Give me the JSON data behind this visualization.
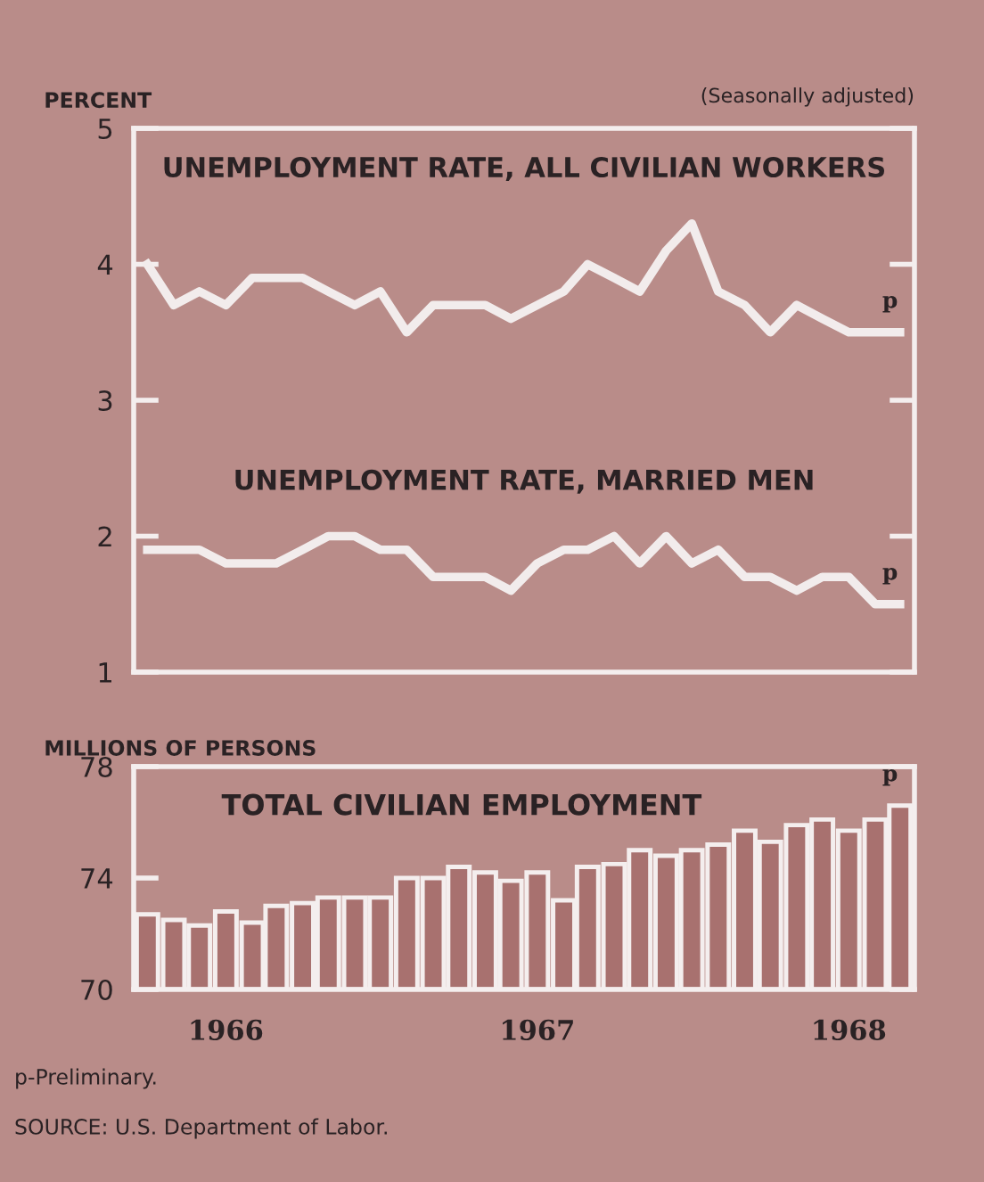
{
  "chart_data": [
    {
      "type": "line",
      "ylabel": "PERCENT",
      "subtitle": "(Seasonally adjusted)",
      "x": [
        "1965-10",
        "1965-11",
        "1965-12",
        "1966-01",
        "1966-02",
        "1966-03",
        "1966-04",
        "1966-05",
        "1966-06",
        "1966-07",
        "1966-08",
        "1966-09",
        "1966-10",
        "1966-11",
        "1966-12",
        "1967-01",
        "1967-02",
        "1967-03",
        "1967-04",
        "1967-05",
        "1967-06",
        "1967-07",
        "1967-08",
        "1967-09",
        "1967-10",
        "1967-11",
        "1967-12",
        "1968-01",
        "1968-02",
        "1968-03"
      ],
      "series": [
        {
          "name": "UNEMPLOYMENT RATE, ALL CIVILIAN WORKERS",
          "color": "#f2ecec",
          "values": [
            4.0,
            3.7,
            3.8,
            3.7,
            3.9,
            3.9,
            3.9,
            3.8,
            3.7,
            3.8,
            3.5,
            3.7,
            3.7,
            3.7,
            3.6,
            3.7,
            3.8,
            4.0,
            3.9,
            3.8,
            4.1,
            4.3,
            3.8,
            3.7,
            3.5,
            3.7,
            3.6,
            3.5,
            3.5,
            3.5
          ]
        },
        {
          "name": "UNEMPLOYMENT RATE, MARRIED MEN",
          "color": "#f2ecec",
          "values": [
            1.9,
            1.9,
            1.9,
            1.8,
            1.8,
            1.8,
            1.9,
            2.0,
            2.0,
            1.9,
            1.9,
            1.7,
            1.7,
            1.7,
            1.6,
            1.8,
            1.9,
            1.9,
            2.0,
            1.8,
            2.0,
            1.8,
            1.9,
            1.7,
            1.7,
            1.6,
            1.7,
            1.7,
            1.5,
            1.5
          ]
        }
      ],
      "xlim": [
        "1965-09-15",
        "1968-03-18"
      ],
      "ylim": [
        1,
        5
      ],
      "yticks": [
        1,
        2,
        3,
        4,
        5
      ],
      "tick_labels": "y",
      "grid": false,
      "legend": "top",
      "marker": "none",
      "line_style": "solid",
      "annotations": [
        {
          "text": "p",
          "x": "1968-03",
          "y": 3.5
        },
        {
          "text": "p",
          "x": "1968-03",
          "y": 1.5
        }
      ]
    },
    {
      "type": "bar",
      "title": "TOTAL CIVILIAN EMPLOYMENT",
      "ylabel": "MILLIONS OF PERSONS",
      "x": [
        "1965-10",
        "1965-11",
        "1965-12",
        "1966-01",
        "1966-02",
        "1966-03",
        "1966-04",
        "1966-05",
        "1966-06",
        "1966-07",
        "1966-08",
        "1966-09",
        "1966-10",
        "1966-11",
        "1966-12",
        "1967-01",
        "1967-02",
        "1967-03",
        "1967-04",
        "1967-05",
        "1967-06",
        "1967-07",
        "1967-08",
        "1967-09",
        "1967-10",
        "1967-11",
        "1967-12",
        "1968-01",
        "1968-02",
        "1968-03"
      ],
      "values": [
        72.7,
        72.5,
        72.3,
        72.8,
        72.4,
        73.0,
        73.1,
        73.3,
        73.3,
        73.3,
        74.0,
        74.0,
        74.4,
        74.2,
        73.9,
        74.2,
        73.2,
        74.4,
        74.5,
        75.0,
        74.8,
        75.0,
        75.2,
        75.7,
        75.3,
        75.9,
        76.1,
        75.7,
        76.1,
        76.6
      ],
      "color": "#a8716f",
      "xlim": [
        "1965-09-15",
        "1968-03-18"
      ],
      "ylim": [
        70,
        78
      ],
      "yticks": [
        70,
        74,
        78
      ],
      "xticks": [
        "1966",
        "1967",
        "1968"
      ],
      "grid": false,
      "annotations": [
        {
          "text": "p",
          "x": "1968-03",
          "y": 76.6
        },
        "p-Preliminary.",
        "SOURCE: U.S. Department of Labor."
      ]
    }
  ]
}
